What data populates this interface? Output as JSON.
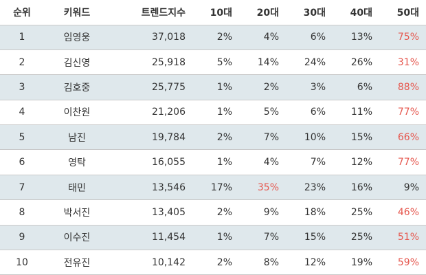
{
  "columns": {
    "rank": "순위",
    "keyword": "키워드",
    "trend": "트렌드지수",
    "age10": "10대",
    "age20": "20대",
    "age30": "30대",
    "age40": "40대",
    "age50": "50대"
  },
  "highlight_color": "#e6584f",
  "stripe_color": "#dfe8ec",
  "rows": [
    {
      "rank": "1",
      "keyword": "임영웅",
      "trend": "37,018",
      "age10": "2%",
      "age20": "4%",
      "age30": "6%",
      "age40": "13%",
      "age50": "75%",
      "highlight": "age50"
    },
    {
      "rank": "2",
      "keyword": "김신영",
      "trend": "25,918",
      "age10": "5%",
      "age20": "14%",
      "age30": "24%",
      "age40": "26%",
      "age50": "31%",
      "highlight": "age50"
    },
    {
      "rank": "3",
      "keyword": "김호중",
      "trend": "25,775",
      "age10": "1%",
      "age20": "2%",
      "age30": "3%",
      "age40": "6%",
      "age50": "88%",
      "highlight": "age50"
    },
    {
      "rank": "4",
      "keyword": "이찬원",
      "trend": "21,206",
      "age10": "1%",
      "age20": "5%",
      "age30": "6%",
      "age40": "11%",
      "age50": "77%",
      "highlight": "age50"
    },
    {
      "rank": "5",
      "keyword": "남진",
      "trend": "19,784",
      "age10": "2%",
      "age20": "7%",
      "age30": "10%",
      "age40": "15%",
      "age50": "66%",
      "highlight": "age50"
    },
    {
      "rank": "6",
      "keyword": "영탁",
      "trend": "16,055",
      "age10": "1%",
      "age20": "4%",
      "age30": "7%",
      "age40": "12%",
      "age50": "77%",
      "highlight": "age50"
    },
    {
      "rank": "7",
      "keyword": "태민",
      "trend": "13,546",
      "age10": "17%",
      "age20": "35%",
      "age30": "23%",
      "age40": "16%",
      "age50": "9%",
      "highlight": "age20"
    },
    {
      "rank": "8",
      "keyword": "박서진",
      "trend": "13,405",
      "age10": "2%",
      "age20": "9%",
      "age30": "18%",
      "age40": "25%",
      "age50": "46%",
      "highlight": "age50"
    },
    {
      "rank": "9",
      "keyword": "이수진",
      "trend": "11,454",
      "age10": "1%",
      "age20": "7%",
      "age30": "15%",
      "age40": "25%",
      "age50": "51%",
      "highlight": "age50"
    },
    {
      "rank": "10",
      "keyword": "전유진",
      "trend": "10,142",
      "age10": "2%",
      "age20": "8%",
      "age30": "12%",
      "age40": "19%",
      "age50": "59%",
      "highlight": "age50"
    }
  ]
}
